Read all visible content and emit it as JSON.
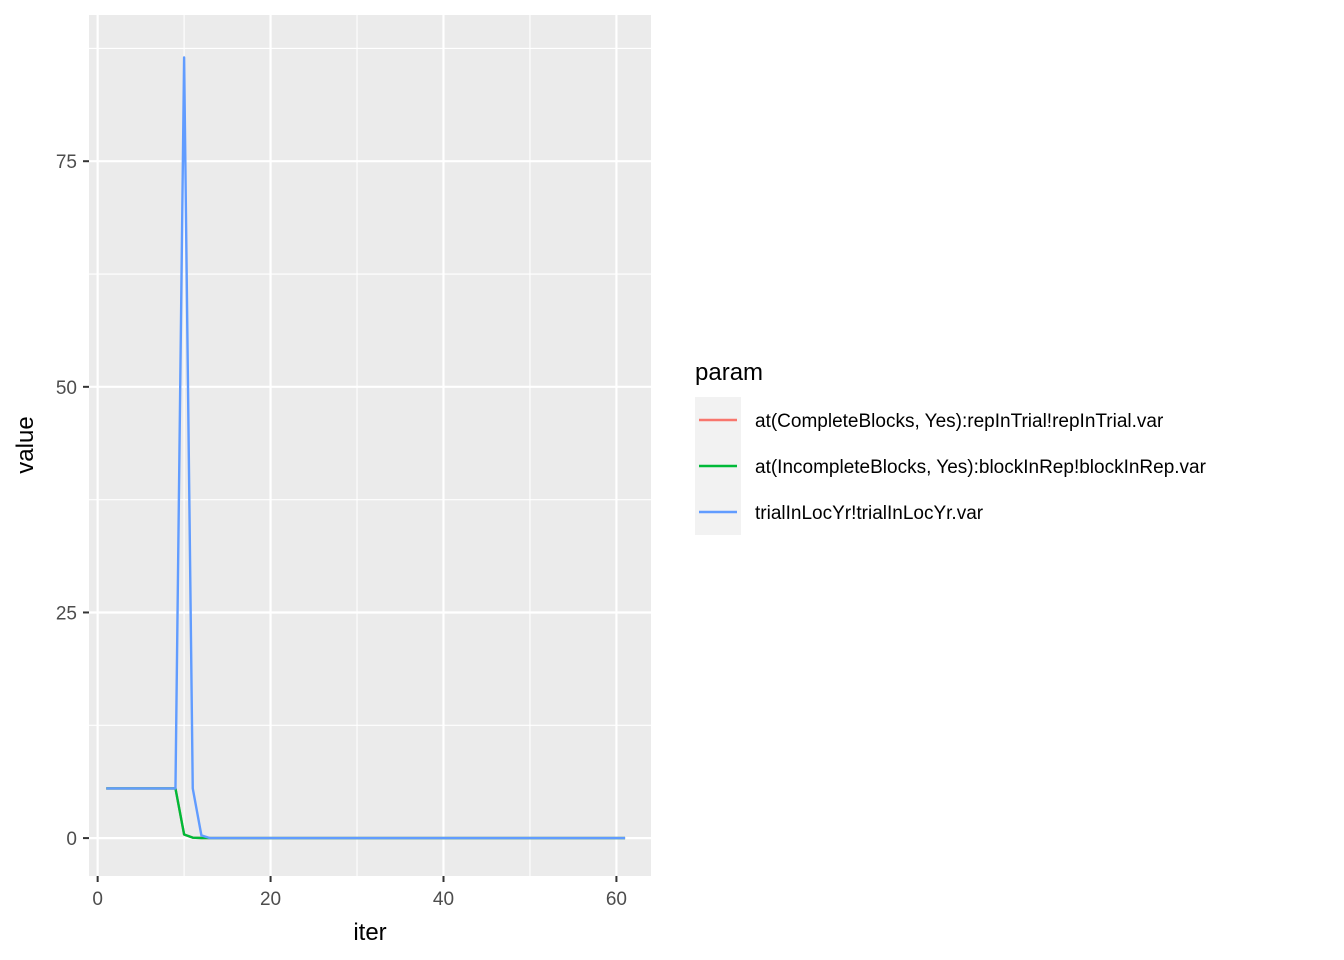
{
  "chart_data": {
    "type": "line",
    "title": "",
    "xlabel": "iter",
    "ylabel": "value",
    "xlim": [
      -1,
      64
    ],
    "ylim": [
      -4.2,
      91.2
    ],
    "x_ticks": [
      0,
      20,
      40,
      60
    ],
    "y_ticks": [
      0,
      25,
      50,
      75
    ],
    "grid": true,
    "legend": {
      "title": "param",
      "position": "right"
    },
    "series": [
      {
        "name": "at(CompleteBlocks, Yes):repInTrial!repInTrial.var",
        "color": "#F8766D",
        "x": [
          1,
          2,
          3,
          4,
          5,
          6,
          7,
          8,
          9,
          10,
          11,
          12,
          13,
          14,
          15,
          20,
          30,
          40,
          50,
          61
        ],
        "y": [
          5.5,
          5.5,
          5.5,
          5.5,
          5.5,
          5.5,
          5.5,
          5.5,
          5.5,
          0.4,
          0.05,
          0.01,
          0,
          0,
          0,
          0,
          0,
          0,
          0,
          0
        ]
      },
      {
        "name": "at(IncompleteBlocks, Yes):blockInRep!blockInRep.var",
        "color": "#00BA38",
        "x": [
          1,
          2,
          3,
          4,
          5,
          6,
          7,
          8,
          9,
          10,
          11,
          12,
          13,
          14,
          15,
          20,
          30,
          40,
          50,
          61
        ],
        "y": [
          5.5,
          5.5,
          5.5,
          5.5,
          5.5,
          5.5,
          5.5,
          5.5,
          5.5,
          0.4,
          0.05,
          0.01,
          0,
          0,
          0,
          0,
          0,
          0,
          0,
          0
        ]
      },
      {
        "name": "trialInLocYr!trialInLocYr.var",
        "color": "#619CFF",
        "x": [
          1,
          2,
          3,
          4,
          5,
          6,
          7,
          8,
          9,
          10,
          11,
          12,
          13,
          14,
          15,
          20,
          30,
          40,
          50,
          61
        ],
        "y": [
          5.5,
          5.5,
          5.5,
          5.5,
          5.5,
          5.5,
          5.5,
          5.5,
          5.5,
          86.5,
          5.5,
          0.3,
          0,
          0,
          0,
          0,
          0,
          0,
          0,
          0
        ]
      }
    ]
  }
}
